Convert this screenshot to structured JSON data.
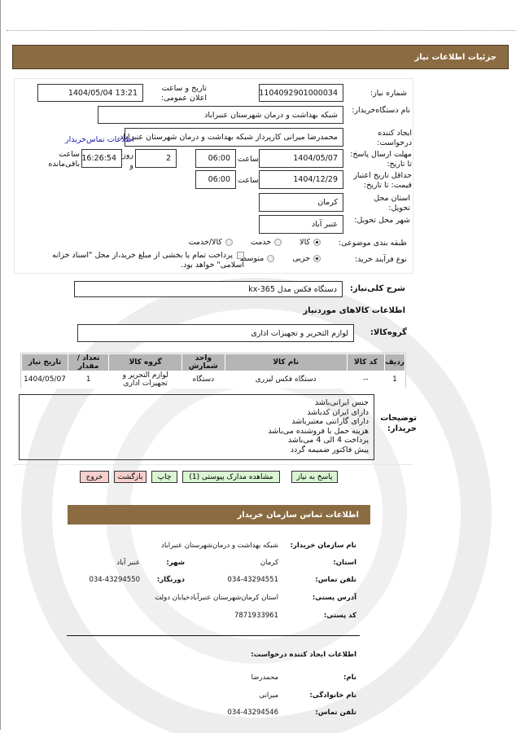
{
  "colors": {
    "header_bar": "#8b6c42",
    "table_header": "#b5b5b5",
    "button_green": "#d9f5d2",
    "button_pink": "#f7cfcf",
    "link": "#1a1aa6"
  },
  "header": {
    "title": "جزئیات اطلاعات نیاز"
  },
  "form": {
    "need_number_label": "شماره نیاز:",
    "need_number": "1104092901000034",
    "announce_label": "تاریخ و ساعت اعلان عمومی:",
    "announce_value": "1404/05/04 13:21",
    "buyer_org_label": "نام دستگاه‌خریدار:",
    "buyer_org": "شبکه بهداشت و درمان  شهرستان  عنبراباد",
    "creator_label": "ایجاد کننده درخواست:",
    "creator": "محمدرضا  میرانی  کارپرداز  شبکه بهداشت و درمان  شهرستان  عنبراباد",
    "contact_link": "اطلاعات تماس‌خریدار",
    "deadline_label": "مهلت ارسال پاسخ: تا تاریخ:",
    "deadline_date": "1404/05/07",
    "time_label": "ساعت",
    "deadline_time": "06:00",
    "days": "2",
    "days_label": "روز",
    "and_label": "و",
    "remaining": "16:26:54",
    "remaining_label": "ساعت باقی‌مانده",
    "validity_label": "حداقل تاریخ اعتبار قیمت: تا تاریخ:",
    "validity_date": "1404/12/29",
    "validity_time": "06:00",
    "province_label": "استان محل تحویل:",
    "province": "کرمان",
    "city_label": "شهر محل تحویل:",
    "city": "عنبر آباد",
    "category_label": "طبقه بندی موضوعی:",
    "category_options": [
      "کالا",
      "خدمت",
      "کالا/خدمت"
    ],
    "category_selected": "کالا",
    "process_label": "نوع فرآیند خرید:",
    "process_options": [
      "جزیی",
      "متوسط"
    ],
    "process_selected": "جزیی",
    "treasury_note": "پرداخت تمام یا بخشی از مبلغ خرید،از محل \"اسناد خزانه اسلامی\" خواهد بود.",
    "treasury_checked": false
  },
  "goods": {
    "summary_label": "شرح کلی‌نیاز:",
    "summary": "دستگاه فکس مدل kx-365",
    "section_title": "اطلاعات کالاهای موردنیاز",
    "group_label": "گروه‌کالا:",
    "group": "لوازم  التحریر و تجهیزات  اداری",
    "columns": [
      "ردیف",
      "کد کالا",
      "نام کالا",
      "واحد شمارش",
      "گروه کالا",
      "تعداد / مقدار",
      "تاریخ نیاز"
    ],
    "rows": [
      [
        "1",
        "--",
        "دستگاه  فکس لیزری",
        "دستگاه",
        "لوازم التحریر و تجهیزات اداری",
        "1",
        "1404/05/07"
      ]
    ],
    "desc_label": "توضیحات خریدار:",
    "desc_lines": [
      "جنس ایرانی‌باشد",
      "دارای ایران کدباشد",
      "دارای  گارانتی  معتبرباشد",
      "هزینه حمل با فروشنده می‌باشد",
      "پرداخت 4 الی 4 می‌باشد",
      "پیش فاکتور  ضمیمه گردد"
    ]
  },
  "buttons": {
    "reply": "پاسخ به نیاز",
    "docs": "مشاهده مدارک پیوستی (1)",
    "print": "چاپ",
    "back": "بازگشت",
    "exit": "خروج"
  },
  "contact": {
    "title": "اطلاعات تماس سازمان خریدار",
    "org_label": "نام سازمان خریدار:",
    "org": "شبکه بهداشت و درمان‌شهرستان عنبراباد",
    "province_label": "استان:",
    "province": "کرمان",
    "city_label": "شهر:",
    "city": "عنبر آباد",
    "phone_label": "تلفن تماس:",
    "phone": "034-43294551",
    "fax_label": "دورنگار:",
    "fax": "034-43294550",
    "address_label": "آدرس پستی:",
    "address": "استان کرمان‌شهرستان عنبرآبادخیابان دولت",
    "postal_label": "کد پستی:",
    "postal": "7871933961",
    "creator_title": "اطلاعات ایجاد کننده درخواست:",
    "name_label": "نام:",
    "name": "محمدرضا",
    "family_label": "نام خانوادگی:",
    "family": "میرانی",
    "creator_phone_label": "تلفن تماس:",
    "creator_phone": "034-43294546"
  }
}
